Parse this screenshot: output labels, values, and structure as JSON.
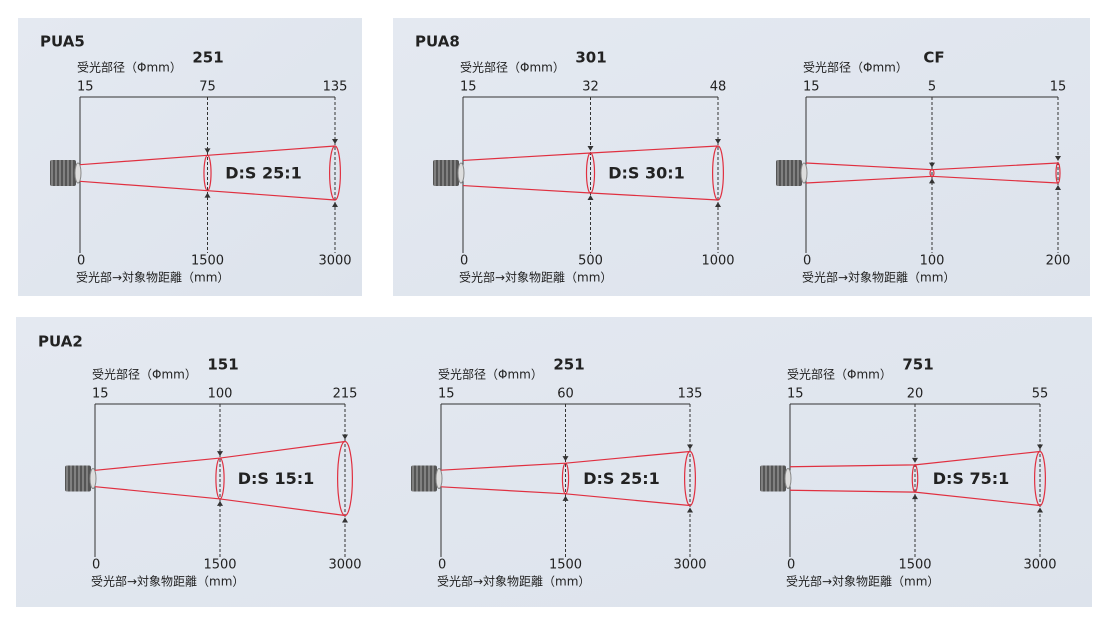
{
  "panels": [
    {
      "label": "PUA5",
      "diagrams": [
        {
          "model": "251",
          "diameter_label": "受光部径（Φmm）",
          "diameters": [
            15,
            75,
            135
          ],
          "distances": [
            0,
            1500,
            3000
          ],
          "distance_label": "受光部→対象物距離（mm）",
          "ds": "D:S 25:1"
        }
      ]
    },
    {
      "label": "PUA8",
      "diagrams": [
        {
          "model": "301",
          "diameter_label": "受光部径（Φmm）",
          "diameters": [
            15,
            32,
            48
          ],
          "distances": [
            0,
            500,
            1000
          ],
          "distance_label": "受光部→対象物距離（mm）",
          "ds": "D:S 30:1"
        },
        {
          "model": "CF",
          "diameter_label": "受光部径（Φmm）",
          "diameters": [
            15,
            5,
            15
          ],
          "distances": [
            0,
            100,
            200
          ],
          "distance_label": "受光部→対象物距離（mm）"
        }
      ]
    },
    {
      "label": "PUA2",
      "diagrams": [
        {
          "model": "151",
          "diameter_label": "受光部径（Φmm）",
          "diameters": [
            15,
            100,
            215
          ],
          "distances": [
            0,
            1500,
            3000
          ],
          "distance_label": "受光部→対象物距離（mm）",
          "ds": "D:S 15:1"
        },
        {
          "model": "251",
          "diameter_label": "受光部径（Φmm）",
          "diameters": [
            15,
            60,
            135
          ],
          "distances": [
            0,
            1500,
            3000
          ],
          "distance_label": "受光部→対象物距離（mm）",
          "ds": "D:S 25:1"
        },
        {
          "model": "751",
          "diameter_label": "受光部径（Φmm）",
          "diameters": [
            15,
            20,
            55
          ],
          "distances": [
            0,
            1500,
            3000
          ],
          "distance_label": "受光部→対象物距離（mm）",
          "ds": "D:S 75:1"
        }
      ]
    }
  ]
}
